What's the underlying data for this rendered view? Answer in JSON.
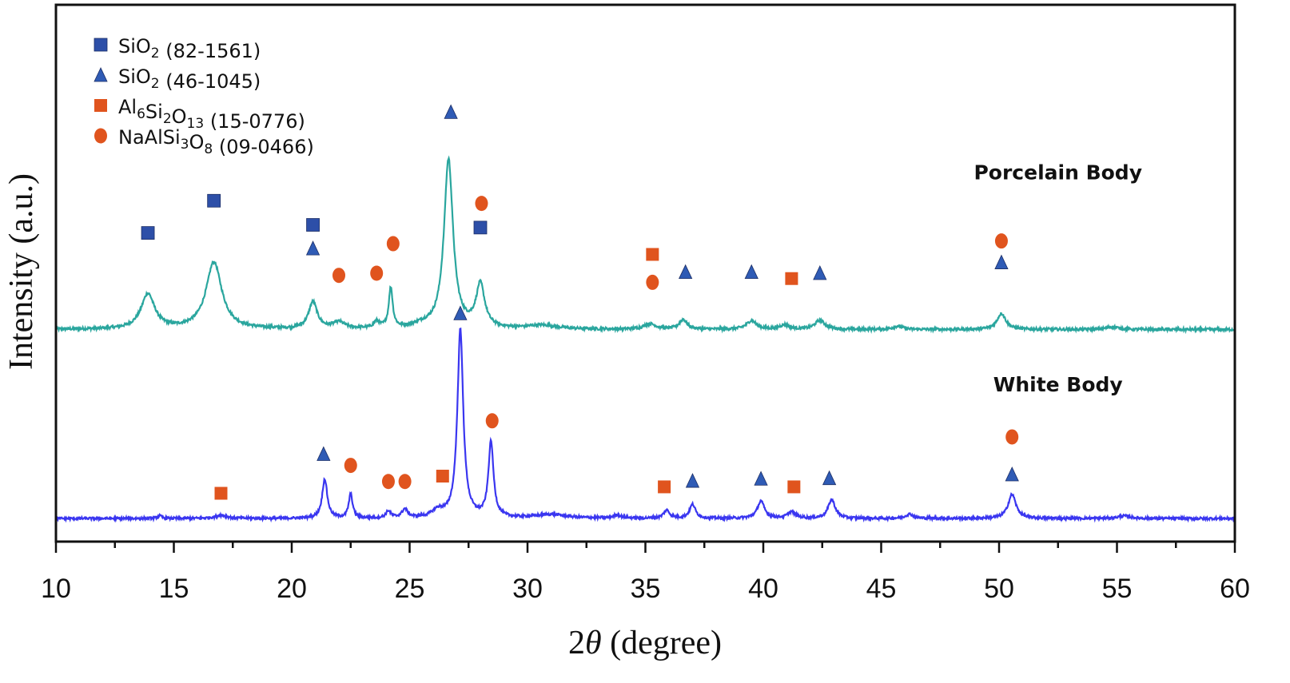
{
  "colors": {
    "sio2_82": "#2D4FA8",
    "sio2_46": "#2F5BB5",
    "al6si2o13": "#E0541E",
    "naalsi3o8": "#E0541E",
    "porcelain_line": "#2AA69E",
    "white_line": "#3A36F0"
  },
  "chart_data": {
    "type": "line",
    "xlabel_prefix": "2",
    "xlabel_symbol": "θ",
    "xlabel_suffix": " (degree)",
    "ylabel": "Intensity (a.u.)",
    "xlim": [
      10,
      60
    ],
    "ylim": [
      0,
      100
    ],
    "xticks": [
      "10",
      "15",
      "20",
      "25",
      "30",
      "35",
      "40",
      "45",
      "50",
      "55",
      "60"
    ],
    "legend": [
      {
        "key": "sio2_82",
        "marker": "square",
        "base": "SiO",
        "sub1": "2",
        "mid": "",
        "sub2": "",
        "tail": "",
        "sub3": "",
        "ref": " (82-1561)"
      },
      {
        "key": "sio2_46",
        "marker": "triangle",
        "base": "SiO",
        "sub1": "2",
        "mid": "",
        "sub2": "",
        "tail": "",
        "sub3": "",
        "ref": " (46-1045)"
      },
      {
        "key": "al6si2o13",
        "marker": "square",
        "base": "Al",
        "sub1": "6",
        "mid": "Si",
        "sub2": "2",
        "tail": "O",
        "sub3": "13",
        "ref": " (15-0776)"
      },
      {
        "key": "naalsi3o8",
        "marker": "circle",
        "base": "NaAlSi",
        "sub1": "3",
        "mid": "O",
        "sub2": "8",
        "tail": "",
        "sub3": "",
        "ref": " (09-0466)"
      }
    ],
    "series": [
      {
        "name": "Porcelain Body",
        "color_key": "porcelain_line",
        "baseline": 39.5,
        "noise": 0.5,
        "peaks": [
          {
            "x": 13.9,
            "h": 6.5,
            "w": 0.35
          },
          {
            "x": 16.7,
            "h": 12.5,
            "w": 0.4
          },
          {
            "x": 20.9,
            "h": 5.0,
            "w": 0.22
          },
          {
            "x": 22.0,
            "h": 1.2,
            "w": 0.3
          },
          {
            "x": 23.6,
            "h": 1.2,
            "w": 0.15
          },
          {
            "x": 24.2,
            "h": 7.5,
            "w": 0.1
          },
          {
            "x": 25.5,
            "h": 0.6,
            "w": 0.5
          },
          {
            "x": 26.65,
            "h": 31.5,
            "w": 0.23
          },
          {
            "x": 28.0,
            "h": 8.0,
            "w": 0.22
          },
          {
            "x": 30.6,
            "h": 0.7,
            "w": 0.8
          },
          {
            "x": 35.2,
            "h": 1.0,
            "w": 0.3
          },
          {
            "x": 36.6,
            "h": 1.8,
            "w": 0.2
          },
          {
            "x": 39.5,
            "h": 1.6,
            "w": 0.25
          },
          {
            "x": 40.9,
            "h": 0.8,
            "w": 0.25
          },
          {
            "x": 42.4,
            "h": 1.7,
            "w": 0.25
          },
          {
            "x": 45.7,
            "h": 0.6,
            "w": 0.25
          },
          {
            "x": 50.1,
            "h": 3.0,
            "w": 0.22
          },
          {
            "x": 54.8,
            "h": 0.5,
            "w": 0.3
          }
        ],
        "markers": [
          {
            "x": 13.9,
            "y": 57.5,
            "type": "sio2_82"
          },
          {
            "x": 16.7,
            "y": 63.5,
            "type": "sio2_82"
          },
          {
            "x": 20.9,
            "y": 59.0,
            "type": "sio2_82"
          },
          {
            "x": 20.9,
            "y": 54.6,
            "type": "sio2_46"
          },
          {
            "x": 22.0,
            "y": 49.6,
            "type": "naalsi3o8"
          },
          {
            "x": 23.6,
            "y": 50.0,
            "type": "naalsi3o8"
          },
          {
            "x": 24.3,
            "y": 55.5,
            "type": "naalsi3o8"
          },
          {
            "x": 26.75,
            "y": 80.0,
            "type": "sio2_46"
          },
          {
            "x": 28.05,
            "y": 63.0,
            "type": "naalsi3o8"
          },
          {
            "x": 28.0,
            "y": 58.5,
            "type": "sio2_82"
          },
          {
            "x": 35.3,
            "y": 53.5,
            "type": "al6si2o13"
          },
          {
            "x": 35.3,
            "y": 48.3,
            "type": "naalsi3o8"
          },
          {
            "x": 36.7,
            "y": 50.2,
            "type": "sio2_46"
          },
          {
            "x": 39.5,
            "y": 50.2,
            "type": "sio2_46"
          },
          {
            "x": 41.2,
            "y": 49.0,
            "type": "al6si2o13"
          },
          {
            "x": 42.4,
            "y": 50.0,
            "type": "sio2_46"
          },
          {
            "x": 50.1,
            "y": 56.0,
            "type": "naalsi3o8"
          },
          {
            "x": 50.1,
            "y": 52.0,
            "type": "sio2_46"
          }
        ]
      },
      {
        "name": "White Body",
        "color_key": "white_line",
        "baseline": 4.3,
        "noise": 0.45,
        "peaks": [
          {
            "x": 14.4,
            "h": 0.5,
            "w": 0.1
          },
          {
            "x": 17.0,
            "h": 0.6,
            "w": 0.3
          },
          {
            "x": 21.4,
            "h": 7.3,
            "w": 0.13
          },
          {
            "x": 22.5,
            "h": 4.5,
            "w": 0.1
          },
          {
            "x": 24.1,
            "h": 1.3,
            "w": 0.12
          },
          {
            "x": 24.8,
            "h": 1.6,
            "w": 0.15
          },
          {
            "x": 26.2,
            "h": 1.3,
            "w": 0.3
          },
          {
            "x": 27.15,
            "h": 35.0,
            "w": 0.15
          },
          {
            "x": 28.45,
            "h": 14.0,
            "w": 0.13
          },
          {
            "x": 31.0,
            "h": 0.7,
            "w": 0.8
          },
          {
            "x": 33.8,
            "h": 0.6,
            "w": 0.2
          },
          {
            "x": 35.9,
            "h": 1.5,
            "w": 0.15
          },
          {
            "x": 37.0,
            "h": 2.6,
            "w": 0.15
          },
          {
            "x": 39.9,
            "h": 3.2,
            "w": 0.18
          },
          {
            "x": 41.2,
            "h": 1.2,
            "w": 0.2
          },
          {
            "x": 42.9,
            "h": 3.5,
            "w": 0.18
          },
          {
            "x": 46.2,
            "h": 0.8,
            "w": 0.2
          },
          {
            "x": 50.55,
            "h": 4.5,
            "w": 0.2
          },
          {
            "x": 55.3,
            "h": 0.5,
            "w": 0.3
          }
        ],
        "markers": [
          {
            "x": 17.0,
            "y": 9.0,
            "type": "al6si2o13"
          },
          {
            "x": 21.35,
            "y": 16.3,
            "type": "sio2_46"
          },
          {
            "x": 22.5,
            "y": 14.2,
            "type": "naalsi3o8"
          },
          {
            "x": 24.1,
            "y": 11.2,
            "type": "naalsi3o8"
          },
          {
            "x": 24.8,
            "y": 11.2,
            "type": "naalsi3o8"
          },
          {
            "x": 26.4,
            "y": 12.2,
            "type": "al6si2o13"
          },
          {
            "x": 27.15,
            "y": 42.5,
            "type": "sio2_46"
          },
          {
            "x": 28.5,
            "y": 22.5,
            "type": "naalsi3o8"
          },
          {
            "x": 35.8,
            "y": 10.2,
            "type": "al6si2o13"
          },
          {
            "x": 37.0,
            "y": 11.3,
            "type": "sio2_46"
          },
          {
            "x": 39.9,
            "y": 11.7,
            "type": "sio2_46"
          },
          {
            "x": 41.3,
            "y": 10.2,
            "type": "al6si2o13"
          },
          {
            "x": 42.8,
            "y": 11.8,
            "type": "sio2_46"
          },
          {
            "x": 50.55,
            "y": 19.5,
            "type": "naalsi3o8"
          },
          {
            "x": 50.55,
            "y": 12.5,
            "type": "sio2_46"
          }
        ]
      }
    ],
    "series_labels": [
      {
        "text": "Porcelain Body",
        "x": 52.5,
        "y": 67.5
      },
      {
        "text": "White Body",
        "x": 52.5,
        "y": 28.0
      }
    ]
  }
}
